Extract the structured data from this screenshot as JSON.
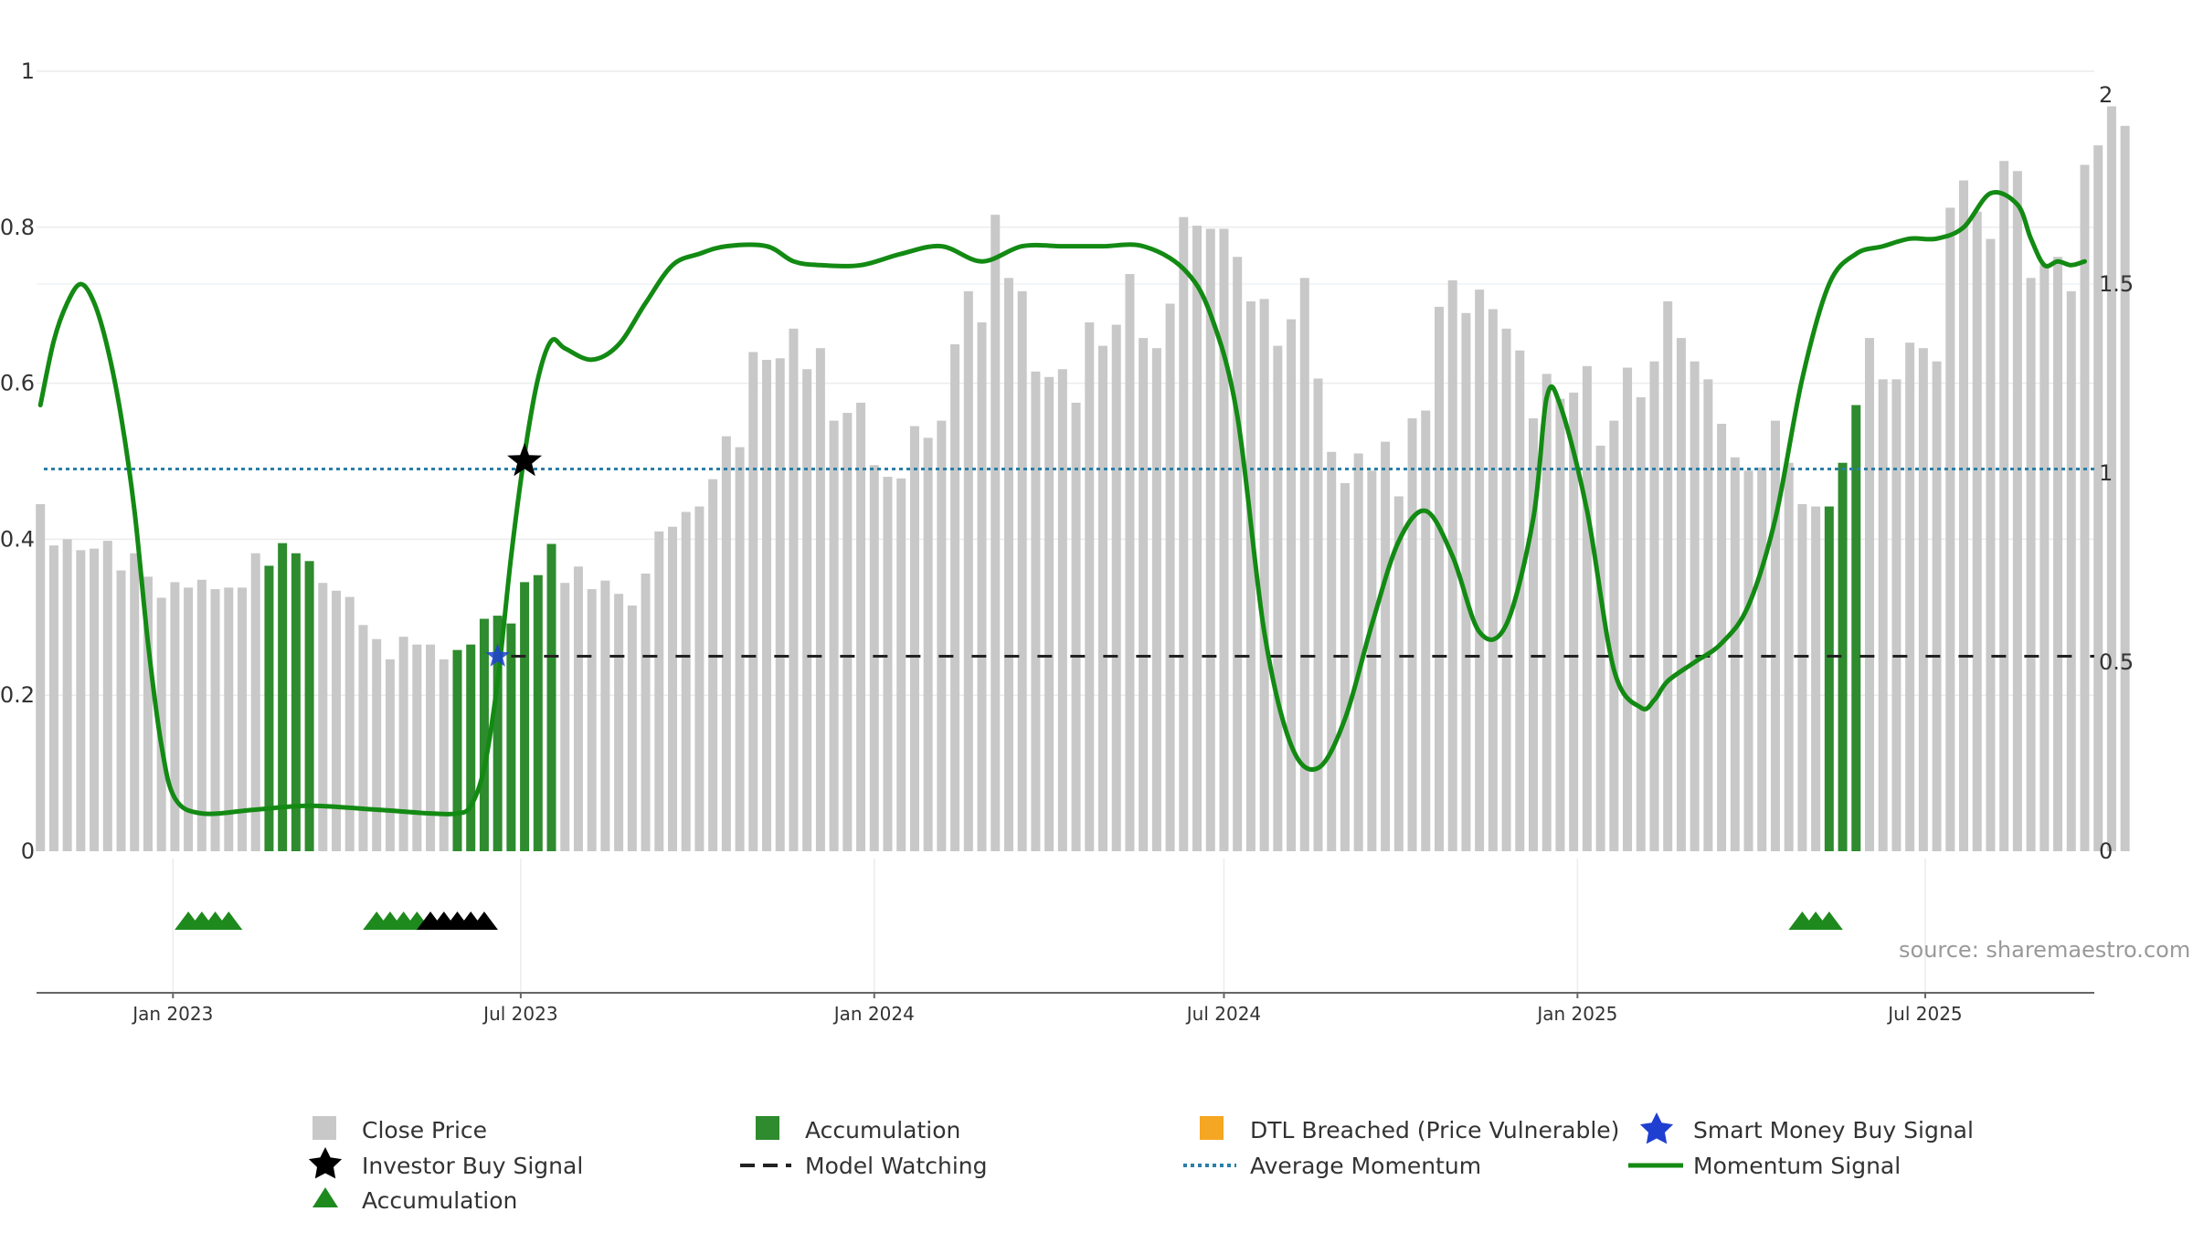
{
  "chart_data": {
    "type": "bar+line",
    "source_label": "source: sharemaestro.com",
    "left_axis": {
      "ylim": [
        0,
        1
      ],
      "ticks": [
        0,
        0.2,
        0.4,
        0.6,
        0.8,
        1
      ],
      "tick_labels": [
        "0",
        "0.2",
        "0.4",
        "0.6",
        "0.8",
        "1"
      ]
    },
    "right_axis": {
      "ylim": [
        0,
        2
      ],
      "ticks": [
        0,
        0.5,
        1,
        1.5,
        2
      ],
      "tick_labels": [
        "0",
        "0.5",
        "1",
        "1.5",
        "2"
      ]
    },
    "x_axis": {
      "start": "2022-10-22",
      "end": "2025-09-27",
      "ticks": [
        {
          "date": "2023-01-01",
          "label": "Jan 2023"
        },
        {
          "date": "2023-07-01",
          "label": "Jul 2023"
        },
        {
          "date": "2024-01-01",
          "label": "Jan 2024"
        },
        {
          "date": "2024-07-01",
          "label": "Jul 2024"
        },
        {
          "date": "2025-01-01",
          "label": "Jan 2025"
        },
        {
          "date": "2025-07-01",
          "label": "Jul 2025"
        }
      ]
    },
    "bars": {
      "name": "Close Price",
      "start": "2022-10-24",
      "interval_days": 7,
      "values": [
        0.445,
        0.392,
        0.4,
        0.386,
        0.388,
        0.398,
        0.36,
        0.382,
        0.352,
        0.325,
        0.345,
        0.338,
        0.348,
        0.336,
        0.338,
        0.338,
        0.382,
        0.366,
        0.395,
        0.382,
        0.372,
        0.344,
        0.334,
        0.326,
        0.29,
        0.272,
        0.246,
        0.275,
        0.265,
        0.265,
        0.246,
        0.258,
        0.265,
        0.298,
        0.302,
        0.292,
        0.345,
        0.354,
        0.394,
        0.344,
        0.365,
        0.336,
        0.347,
        0.33,
        0.315,
        0.356,
        0.41,
        0.416,
        0.435,
        0.442,
        0.477,
        0.532,
        0.518,
        0.64,
        0.63,
        0.632,
        0.67,
        0.618,
        0.645,
        0.552,
        0.562,
        0.575,
        0.495,
        0.48,
        0.478,
        0.545,
        0.53,
        0.552,
        0.65,
        0.718,
        0.678,
        0.816,
        0.735,
        0.718,
        0.615,
        0.608,
        0.618,
        0.575,
        0.678,
        0.648,
        0.675,
        0.74,
        0.658,
        0.645,
        0.702,
        0.813,
        0.802,
        0.798,
        0.798,
        0.762,
        0.705,
        0.708,
        0.648,
        0.682,
        0.735,
        0.606,
        0.512,
        0.472,
        0.51,
        0.488,
        0.525,
        0.455,
        0.555,
        0.565,
        0.698,
        0.732,
        0.69,
        0.72,
        0.695,
        0.67,
        0.642,
        0.555,
        0.612,
        0.58,
        0.588,
        0.622,
        0.52,
        0.552,
        0.62,
        0.582,
        0.628,
        0.705,
        0.658,
        0.628,
        0.605,
        0.548,
        0.505,
        0.488,
        0.492,
        0.552,
        0.498,
        0.445,
        0.442,
        0.442,
        0.498,
        0.572,
        0.658,
        0.605,
        0.605,
        0.652,
        0.645,
        0.628,
        0.825,
        0.86,
        0.82,
        0.785,
        0.885,
        0.872,
        0.735,
        0.752,
        0.762,
        0.718,
        0.88,
        0.905,
        0.955,
        0.93
      ],
      "accumulation_ranges": [
        [
          17,
          20
        ],
        [
          31,
          38
        ],
        [
          133,
          135
        ]
      ]
    },
    "momentum_signal": {
      "name": "Momentum Signal",
      "axis": "right",
      "dates": [
        "2022-10-24",
        "2022-10-31",
        "2022-11-07",
        "2022-11-14",
        "2022-11-21",
        "2022-11-28",
        "2022-12-05",
        "2022-12-12",
        "2022-12-19",
        "2022-12-26",
        "2023-01-02",
        "2023-01-16",
        "2023-02-13",
        "2023-03-13",
        "2023-04-17",
        "2023-05-15",
        "2023-05-29",
        "2023-06-05",
        "2023-06-12",
        "2023-06-19",
        "2023-06-26",
        "2023-07-03",
        "2023-07-10",
        "2023-07-17",
        "2023-07-24",
        "2023-08-07",
        "2023-08-21",
        "2023-09-04",
        "2023-09-18",
        "2023-10-02",
        "2023-10-16",
        "2023-11-06",
        "2023-11-20",
        "2023-12-04",
        "2023-12-25",
        "2024-01-15",
        "2024-02-05",
        "2024-02-26",
        "2024-03-18",
        "2024-04-08",
        "2024-04-29",
        "2024-05-20",
        "2024-06-10",
        "2024-06-24",
        "2024-07-08",
        "2024-07-22",
        "2024-08-05",
        "2024-08-19",
        "2024-09-02",
        "2024-09-16",
        "2024-09-30",
        "2024-10-14",
        "2024-10-28",
        "2024-11-11",
        "2024-11-25",
        "2024-12-09",
        "2024-12-16",
        "2024-12-23",
        "2025-01-06",
        "2025-01-20",
        "2025-02-03",
        "2025-02-10",
        "2025-02-17",
        "2025-03-03",
        "2025-03-17",
        "2025-03-31",
        "2025-04-14",
        "2025-04-28",
        "2025-05-12",
        "2025-05-26",
        "2025-06-09",
        "2025-06-23",
        "2025-07-07",
        "2025-07-21",
        "2025-08-04",
        "2025-08-18",
        "2025-08-25",
        "2025-09-01",
        "2025-09-08",
        "2025-09-15",
        "2025-09-22"
      ],
      "values": [
        1.18,
        1.35,
        1.45,
        1.5,
        1.45,
        1.33,
        1.15,
        0.9,
        0.55,
        0.28,
        0.14,
        0.1,
        0.11,
        0.12,
        0.11,
        0.1,
        0.1,
        0.12,
        0.22,
        0.45,
        0.78,
        1.05,
        1.25,
        1.35,
        1.33,
        1.3,
        1.34,
        1.45,
        1.55,
        1.58,
        1.6,
        1.6,
        1.56,
        1.55,
        1.55,
        1.58,
        1.6,
        1.56,
        1.6,
        1.6,
        1.6,
        1.6,
        1.54,
        1.42,
        1.15,
        0.58,
        0.28,
        0.22,
        0.35,
        0.6,
        0.82,
        0.9,
        0.78,
        0.58,
        0.6,
        0.88,
        1.2,
        1.18,
        0.9,
        0.48,
        0.38,
        0.4,
        0.45,
        0.5,
        0.55,
        0.65,
        0.88,
        1.25,
        1.5,
        1.58,
        1.6,
        1.62,
        1.62,
        1.65,
        1.74,
        1.71,
        1.62,
        1.55,
        1.56,
        1.55,
        1.56
      ]
    },
    "average_momentum": {
      "name": "Average Momentum",
      "value": 0.49,
      "axis": "left"
    },
    "model_watching": {
      "name": "Model Watching",
      "value": 0.25,
      "axis": "left",
      "start": "2023-06-26"
    },
    "investor_buy_signal": {
      "name": "Investor Buy Signal",
      "date": "2023-07-03",
      "value": 0.5
    },
    "smart_money_buy_signal": {
      "name": "Smart Money Buy Signal",
      "date": "2023-06-19",
      "value": 0.25
    },
    "accumulation_markers": {
      "green": [
        "2023-01-09",
        "2023-01-16",
        "2023-01-23",
        "2023-01-30",
        "2023-04-17",
        "2023-04-24",
        "2023-05-01",
        "2023-05-08"
      ],
      "black": [
        "2023-05-15",
        "2023-05-22",
        "2023-05-29",
        "2023-06-05",
        "2023-06-12"
      ],
      "green_late": [
        "2025-04-28",
        "2025-05-05",
        "2025-05-12"
      ]
    },
    "colors": {
      "bar": "#c8c8c8",
      "accumulation_bar": "#2e8b2e",
      "momentum": "#138a13",
      "average_momentum": "#2a7fa8",
      "model_watching": "#222222",
      "investor_buy": "#000000",
      "smart_money": "#1f3fd1",
      "dtl": "#f5a623",
      "marker_green": "#1e8a1e",
      "marker_black": "#000000"
    },
    "legend": [
      {
        "label": "Close Price",
        "symbol": "gray-square"
      },
      {
        "label": "Accumulation",
        "symbol": "green-square"
      },
      {
        "label": "DTL Breached (Price Vulnerable)",
        "symbol": "orange-square"
      },
      {
        "label": "Smart Money Buy Signal",
        "symbol": "blue-star"
      },
      {
        "label": "Investor Buy Signal",
        "symbol": "black-star"
      },
      {
        "label": "Model Watching",
        "symbol": "black-dash"
      },
      {
        "label": "Average Momentum",
        "symbol": "blue-dotted"
      },
      {
        "label": "Momentum Signal",
        "symbol": "green-line"
      },
      {
        "label": "Accumulation",
        "symbol": "green-triangle"
      }
    ]
  }
}
